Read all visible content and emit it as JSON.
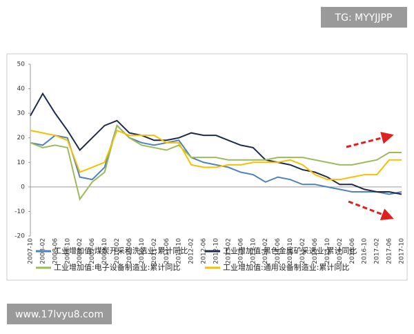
{
  "watermark_top": "TG: MYYJJPP",
  "watermark_bottom": "www.17lvyu8.com",
  "chart_data": {
    "type": "line",
    "categories": [
      "2007-10",
      "2008-02",
      "2008-06",
      "2008-10",
      "2009-02",
      "2009-06",
      "2009-10",
      "2010-02",
      "2010-06",
      "2010-10",
      "2011-02",
      "2011-06",
      "2011-10",
      "2012-02",
      "2012-06",
      "2012-10",
      "2013-02",
      "2013-06",
      "2013-10",
      "2014-02",
      "2014-06",
      "2014-10",
      "2015-02",
      "2015-06",
      "2015-10",
      "2016-02",
      "2016-06",
      "2016-10",
      "2017-02",
      "2017-06",
      "2017-10"
    ],
    "series": [
      {
        "name": "工业增加值:煤炭开采和洗选业:累计同比",
        "color": "#4f81bd",
        "values": [
          18,
          17,
          21,
          20,
          4,
          3,
          8,
          25,
          20,
          18,
          17,
          18,
          19,
          12,
          10,
          9,
          8,
          6,
          5,
          2,
          4,
          3,
          1,
          1,
          0,
          -1,
          -2,
          -2,
          -2,
          -3,
          -2
        ]
      },
      {
        "name": "工业增加值:黑色金属矿采选业:累计同比",
        "color": "#1f2a4a",
        "values": [
          29,
          38,
          30,
          23,
          15,
          20,
          25,
          27,
          22,
          21,
          19,
          19,
          20,
          22,
          21,
          21,
          19,
          17,
          16,
          11,
          10,
          9,
          7,
          6,
          4,
          1,
          1,
          -1,
          -2,
          -2,
          -3
        ]
      },
      {
        "name": "工业增加值:电子设备制造业:累计同比",
        "color": "#9bbb59",
        "values": [
          18,
          16,
          17,
          16,
          -5,
          2,
          6,
          25,
          20,
          17,
          16,
          15,
          17,
          12,
          12,
          12,
          11,
          11,
          11,
          11,
          12,
          12,
          12,
          11,
          10,
          9,
          9,
          10,
          11,
          14,
          14
        ]
      },
      {
        "name": "工业增加值:通用设备制造业:累计同比",
        "color": "#f5c000",
        "values": [
          23,
          22,
          21,
          19,
          6,
          8,
          10,
          23,
          21,
          21,
          21,
          18,
          18,
          9,
          8,
          8,
          9,
          9,
          10,
          10,
          10,
          11,
          9,
          5,
          3,
          3,
          4,
          5,
          5,
          11,
          11
        ]
      }
    ],
    "ylim": [
      -20,
      50
    ],
    "yticks": [
      -20,
      -10,
      0,
      10,
      20,
      30,
      40,
      50
    ],
    "grid": false
  }
}
